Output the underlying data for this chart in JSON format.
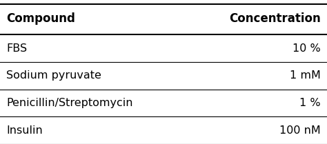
{
  "columns": [
    "Compound",
    "Concentration"
  ],
  "rows": [
    [
      "FBS",
      "10 %"
    ],
    [
      "Sodium pyruvate",
      "1 mM"
    ],
    [
      "Penicillin/Streptomycin",
      "1 %"
    ],
    [
      "Insulin",
      "100 nM"
    ]
  ],
  "header_fontsize": 12,
  "row_fontsize": 11.5,
  "background_color": "#ffffff",
  "text_color": "#000000",
  "line_color": "#000000"
}
